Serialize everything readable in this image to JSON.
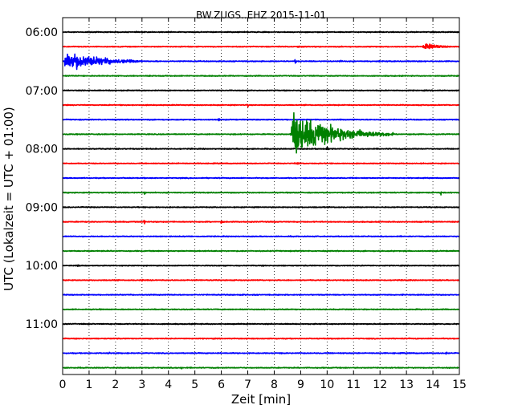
{
  "chart_data": {
    "type": "line",
    "title": "BW.ZUGS..EHZ 2015-11-01",
    "xlabel": "Zeit  [min]",
    "ylabel": "UTC (Lokalzeit = UTC + 01:00)",
    "xlim": [
      0,
      15
    ],
    "x_ticks": [
      0,
      1,
      2,
      3,
      4,
      5,
      6,
      7,
      8,
      9,
      10,
      11,
      12,
      13,
      14,
      15
    ],
    "x_tick_labels": [
      "0",
      "1",
      "2",
      "3",
      "4",
      "5",
      "6",
      "7",
      "8",
      "9",
      "10",
      "11",
      "12",
      "13",
      "14",
      "15"
    ],
    "y_tick_labels": [
      "06:00",
      "07:00",
      "08:00",
      "09:00",
      "10:00",
      "11:00"
    ],
    "grid": "vertical dotted at each minute",
    "trace_interval_min": 15,
    "trace_colors": [
      "#000000",
      "#ff0000",
      "#0000ff",
      "#008000"
    ],
    "traces": [
      {
        "start": "06:00",
        "color": "#000000",
        "amplitude": 0.12
      },
      {
        "start": "06:15",
        "color": "#ff0000",
        "amplitude": 0.12,
        "events": [
          {
            "t": 8.9,
            "amp": 0.6
          },
          {
            "t": 13.6,
            "end": 15.0,
            "amp": 1.1
          }
        ]
      },
      {
        "start": "06:30",
        "color": "#0000ff",
        "amplitude": 0.12,
        "events": [
          {
            "t": 0.05,
            "end": 3.0,
            "amp": 3.2
          },
          {
            "t": 8.8,
            "amp": 0.6
          },
          {
            "t": 10.5,
            "amp": 0.5
          }
        ]
      },
      {
        "start": "06:45",
        "color": "#008000",
        "amplitude": 0.12
      },
      {
        "start": "07:00",
        "color": "#000000",
        "amplitude": 0.12
      },
      {
        "start": "07:15",
        "color": "#ff0000",
        "amplitude": 0.12,
        "events": [
          {
            "t": 7.0,
            "amp": 0.6
          }
        ]
      },
      {
        "start": "07:30",
        "color": "#0000ff",
        "amplitude": 0.12,
        "events": [
          {
            "t": 5.9,
            "amp": 0.5
          }
        ]
      },
      {
        "start": "07:45",
        "color": "#008000",
        "amplitude": 0.12,
        "events": [
          {
            "t": 8.6,
            "end": 12.5,
            "amp": 6.0
          }
        ]
      },
      {
        "start": "08:00",
        "color": "#000000",
        "amplitude": 0.12,
        "events": [
          {
            "t": 10.0,
            "amp": 0.6
          }
        ]
      },
      {
        "start": "08:15",
        "color": "#ff0000",
        "amplitude": 0.12,
        "events": [
          {
            "t": 8.7,
            "end": 10.0,
            "amp": 0.35
          }
        ]
      },
      {
        "start": "08:30",
        "color": "#0000ff",
        "amplitude": 0.12
      },
      {
        "start": "08:45",
        "color": "#008000",
        "amplitude": 0.12,
        "events": [
          {
            "t": 3.1,
            "amp": 0.5
          },
          {
            "t": 14.3,
            "amp": 0.5
          }
        ]
      },
      {
        "start": "09:00",
        "color": "#000000",
        "amplitude": 0.12
      },
      {
        "start": "09:15",
        "color": "#ff0000",
        "amplitude": 0.12,
        "events": [
          {
            "t": 3.1,
            "amp": 0.5
          },
          {
            "t": 6.0,
            "amp": 0.4
          }
        ]
      },
      {
        "start": "09:30",
        "color": "#0000ff",
        "amplitude": 0.12
      },
      {
        "start": "09:45",
        "color": "#008000",
        "amplitude": 0.12
      },
      {
        "start": "10:00",
        "color": "#000000",
        "amplitude": 0.12,
        "events": [
          {
            "t": 0.6,
            "amp": 0.5
          }
        ]
      },
      {
        "start": "10:15",
        "color": "#ff0000",
        "amplitude": 0.12,
        "events": [
          {
            "t": 3.0,
            "amp": 0.4
          }
        ]
      },
      {
        "start": "10:30",
        "color": "#0000ff",
        "amplitude": 0.12
      },
      {
        "start": "10:45",
        "color": "#008000",
        "amplitude": 0.12
      },
      {
        "start": "11:00",
        "color": "#000000",
        "amplitude": 0.12
      },
      {
        "start": "11:15",
        "color": "#ff0000",
        "amplitude": 0.12
      },
      {
        "start": "11:30",
        "color": "#0000ff",
        "amplitude": 0.12,
        "events": [
          {
            "t": 1.8,
            "amp": 0.5
          },
          {
            "t": 14.5,
            "amp": 0.5
          }
        ]
      },
      {
        "start": "11:45",
        "color": "#008000",
        "amplitude": 0.12,
        "events": [
          {
            "t": 4.5,
            "amp": 0.4
          }
        ]
      }
    ]
  }
}
